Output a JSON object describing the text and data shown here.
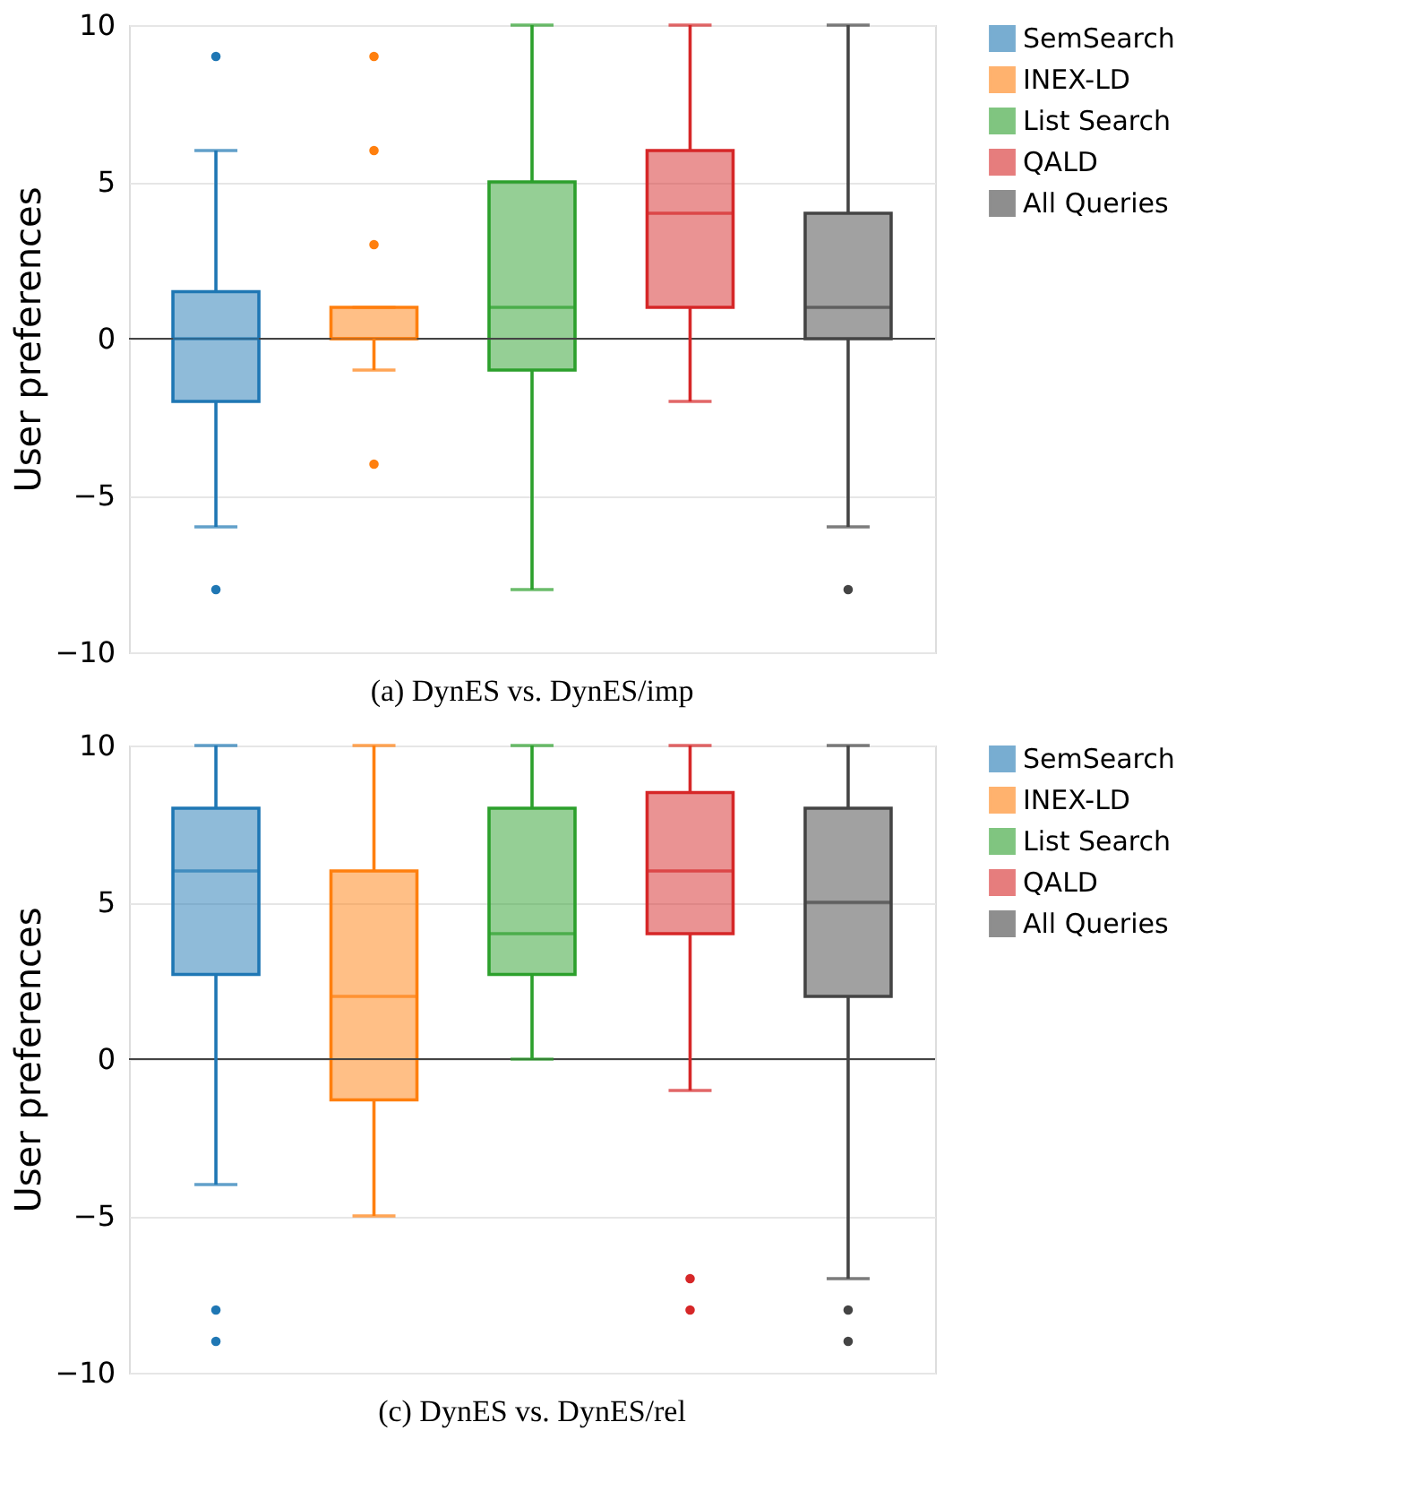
{
  "chart_data": [
    {
      "type": "box",
      "title": "(a) DynES vs. DynES/imp",
      "ylabel": "User preferences",
      "series": [
        {
          "name": "SemSearch",
          "color": "#1f77b4",
          "boxes": [
            {
              "low": -6,
              "q1": -2,
              "median": 0,
              "q3": 1.5,
              "high": 6,
              "outliers": [
                9,
                -8
              ]
            }
          ]
        },
        {
          "name": "INEX-LD",
          "color": "#ff7f0e",
          "boxes": [
            {
              "low": -1,
              "q1": 0,
              "median": 0,
              "q3": 1,
              "high": 1,
              "outliers": [
                9,
                6,
                3,
                -4
              ]
            }
          ]
        },
        {
          "name": "List Search",
          "color": "#2ca02c",
          "boxes": [
            {
              "low": -8,
              "q1": -1,
              "median": 1,
              "q3": 5,
              "high": 10
            }
          ]
        },
        {
          "name": "QALD",
          "color": "#d62728",
          "boxes": [
            {
              "low": -2,
              "q1": 1,
              "median": 4,
              "q3": 6,
              "high": 10
            }
          ]
        },
        {
          "name": "All Queries",
          "color": "#444444",
          "boxes": [
            {
              "low": -6,
              "q1": 0,
              "median": 1,
              "q3": 4,
              "high": 10,
              "outliers": [
                -8
              ]
            }
          ]
        }
      ],
      "ylim": [
        -10,
        10
      ],
      "yticks": [
        -10,
        -5,
        0,
        5,
        10
      ],
      "grid": "y",
      "legend": "right",
      "tick_labels": "y",
      "ref_lines": [
        {
          "axis": "y",
          "value": 0,
          "color": "#444444"
        }
      ]
    },
    {
      "type": "box",
      "title": "(c) DynES vs. DynES/rel",
      "ylabel": "User preferences",
      "series": [
        {
          "name": "SemSearch",
          "color": "#1f77b4",
          "boxes": [
            {
              "low": -4,
              "q1": 2.7,
              "median": 6,
              "q3": 8,
              "high": 10,
              "outliers": [
                -8,
                -9
              ]
            }
          ]
        },
        {
          "name": "INEX-LD",
          "color": "#ff7f0e",
          "boxes": [
            {
              "low": -5,
              "q1": -1.3,
              "median": 2,
              "q3": 6,
              "high": 10
            }
          ]
        },
        {
          "name": "List Search",
          "color": "#2ca02c",
          "boxes": [
            {
              "low": 0,
              "q1": 2.7,
              "median": 4,
              "q3": 8,
              "high": 10
            }
          ]
        },
        {
          "name": "QALD",
          "color": "#d62728",
          "boxes": [
            {
              "low": -1,
              "q1": 4,
              "median": 6,
              "q3": 8.5,
              "high": 10,
              "outliers": [
                -7,
                -8
              ]
            }
          ]
        },
        {
          "name": "All Queries",
          "color": "#444444",
          "boxes": [
            {
              "low": -7,
              "q1": 2,
              "median": 5,
              "q3": 8,
              "high": 10,
              "outliers": [
                -8,
                -9
              ]
            }
          ]
        }
      ],
      "ylim": [
        -10,
        10
      ],
      "yticks": [
        -10,
        -5,
        0,
        5,
        10
      ],
      "grid": "y",
      "legend": "right",
      "tick_labels": "y",
      "ref_lines": [
        {
          "axis": "y",
          "value": 0,
          "color": "#444444"
        }
      ]
    }
  ]
}
